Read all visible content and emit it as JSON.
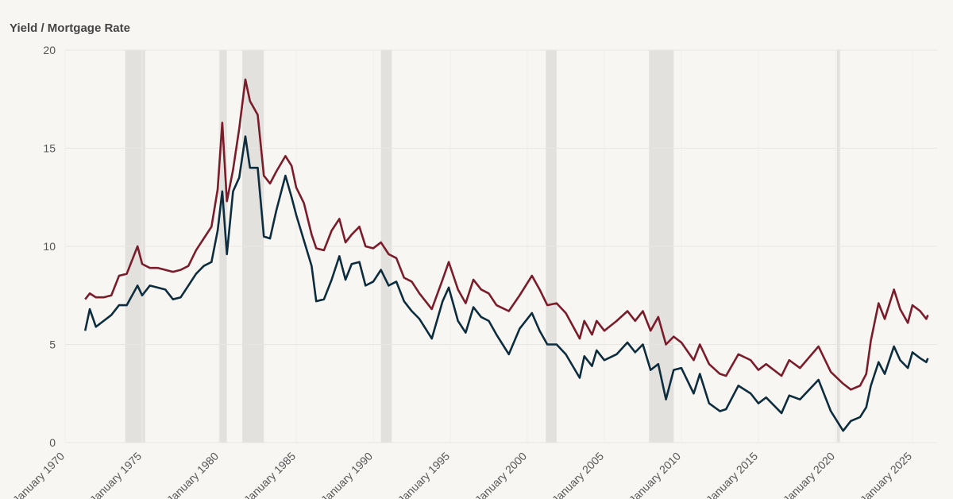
{
  "chart_data": {
    "type": "line",
    "title": "Yield / Mortgage Rate",
    "x": [
      1971.3,
      1971.6,
      1972,
      1972.5,
      1973,
      1973.5,
      1974,
      1974.7,
      1975,
      1975.5,
      1976,
      1976.5,
      1977,
      1977.5,
      1978,
      1978.5,
      1979,
      1979.5,
      1979.9,
      1980.2,
      1980.5,
      1980.9,
      1981.3,
      1981.7,
      1982,
      1982.5,
      1982.9,
      1983.3,
      1983.7,
      1984.3,
      1984.7,
      1985,
      1985.5,
      1986,
      1986.3,
      1986.8,
      1987.3,
      1987.8,
      1988.2,
      1988.6,
      1989.1,
      1989.5,
      1990,
      1990.5,
      1991,
      1991.5,
      1992,
      1992.5,
      1993,
      1993.8,
      1994.5,
      1994.9,
      1995.5,
      1996,
      1996.5,
      1997,
      1997.5,
      1998,
      1998.8,
      1999.5,
      2000.3,
      2000.8,
      2001.3,
      2001.9,
      2002.5,
      2003.4,
      2003.7,
      2004.2,
      2004.5,
      2005,
      2005.8,
      2006.5,
      2007,
      2007.5,
      2008,
      2008.5,
      2009,
      2009.5,
      2010,
      2010.8,
      2011.2,
      2011.8,
      2012.5,
      2012.9,
      2013.7,
      2014.5,
      2015,
      2015.5,
      2016.5,
      2017,
      2017.7,
      2018.9,
      2019.7,
      2020.5,
      2021,
      2021.6,
      2022,
      2022.3,
      2022.8,
      2023.2,
      2023.8,
      2024.2,
      2024.7,
      2025,
      2025.5,
      2025.9,
      2026
    ],
    "series": [
      {
        "color": "#7a1c2a",
        "values": [
          7.3,
          7.6,
          7.4,
          7.4,
          7.5,
          8.5,
          8.6,
          10.0,
          9.1,
          8.9,
          8.9,
          8.8,
          8.7,
          8.8,
          9.0,
          9.8,
          10.4,
          11.0,
          12.9,
          16.3,
          12.3,
          13.9,
          16.0,
          18.5,
          17.4,
          16.7,
          13.6,
          13.2,
          13.8,
          14.6,
          14.1,
          13.0,
          12.2,
          10.6,
          9.9,
          9.8,
          10.8,
          11.4,
          10.2,
          10.6,
          11.0,
          10.0,
          9.9,
          10.2,
          9.6,
          9.4,
          8.4,
          8.2,
          7.6,
          6.8,
          8.3,
          9.2,
          7.8,
          7.1,
          8.3,
          7.8,
          7.6,
          7.0,
          6.7,
          7.5,
          8.5,
          7.8,
          7.0,
          7.1,
          6.6,
          5.3,
          6.2,
          5.5,
          6.2,
          5.7,
          6.2,
          6.7,
          6.2,
          6.7,
          5.7,
          6.4,
          5.0,
          5.4,
          5.1,
          4.2,
          5.0,
          4.0,
          3.5,
          3.4,
          4.5,
          4.2,
          3.7,
          4.0,
          3.4,
          4.2,
          3.8,
          4.9,
          3.6,
          3.0,
          2.7,
          2.9,
          3.5,
          5.2,
          7.1,
          6.3,
          7.8,
          6.8,
          6.1,
          7.0,
          6.7,
          6.3,
          6.5
        ]
      },
      {
        "color": "#0d2d3e",
        "values": [
          5.7,
          6.8,
          5.9,
          6.2,
          6.5,
          7.0,
          7.0,
          8.0,
          7.5,
          8.0,
          7.9,
          7.8,
          7.3,
          7.4,
          8.0,
          8.6,
          9.0,
          9.2,
          10.8,
          12.8,
          9.6,
          12.8,
          13.5,
          15.6,
          14.0,
          14.0,
          10.5,
          10.4,
          11.8,
          13.6,
          12.5,
          11.6,
          10.3,
          9.0,
          7.2,
          7.3,
          8.3,
          9.5,
          8.3,
          9.1,
          9.2,
          8.0,
          8.2,
          8.8,
          8.0,
          8.2,
          7.2,
          6.7,
          6.3,
          5.3,
          7.2,
          7.9,
          6.2,
          5.6,
          6.9,
          6.4,
          6.2,
          5.5,
          4.5,
          5.8,
          6.6,
          5.7,
          5.0,
          5.0,
          4.5,
          3.3,
          4.4,
          3.9,
          4.7,
          4.2,
          4.5,
          5.1,
          4.6,
          5.0,
          3.7,
          4.0,
          2.2,
          3.7,
          3.8,
          2.5,
          3.5,
          2.0,
          1.6,
          1.7,
          2.9,
          2.5,
          2.0,
          2.3,
          1.5,
          2.4,
          2.2,
          3.2,
          1.6,
          0.6,
          1.1,
          1.3,
          1.8,
          2.9,
          4.1,
          3.5,
          4.9,
          4.2,
          3.8,
          4.6,
          4.3,
          4.1,
          4.3
        ]
      }
    ],
    "recessions": [
      [
        1973.9,
        1975.2
      ],
      [
        1980.0,
        1980.5
      ],
      [
        1981.5,
        1982.9
      ],
      [
        1990.5,
        1991.2
      ],
      [
        2001.2,
        2001.9
      ],
      [
        2007.9,
        2009.5
      ],
      [
        2020.1,
        2020.3
      ]
    ],
    "recession_color": "#e3e1de",
    "xlim": [
      1970,
      2026.6
    ],
    "xticks": [
      {
        "value": 1970,
        "label": "January 1970"
      },
      {
        "value": 1975,
        "label": "January 1975"
      },
      {
        "value": 1980,
        "label": "January 1980"
      },
      {
        "value": 1985,
        "label": "January 1985"
      },
      {
        "value": 1990,
        "label": "January 1990"
      },
      {
        "value": 1995,
        "label": "January 1995"
      },
      {
        "value": 2000,
        "label": "January 2000"
      },
      {
        "value": 2005,
        "label": "January 2005"
      },
      {
        "value": 2010,
        "label": "January 2010"
      },
      {
        "value": 2015,
        "label": "January 2015"
      },
      {
        "value": 2020,
        "label": "January 2020"
      },
      {
        "value": 2025,
        "label": "January 2025"
      }
    ],
    "ylim": [
      0,
      20
    ],
    "yticks": [
      0,
      5,
      10,
      15,
      20
    ],
    "grid": true
  }
}
